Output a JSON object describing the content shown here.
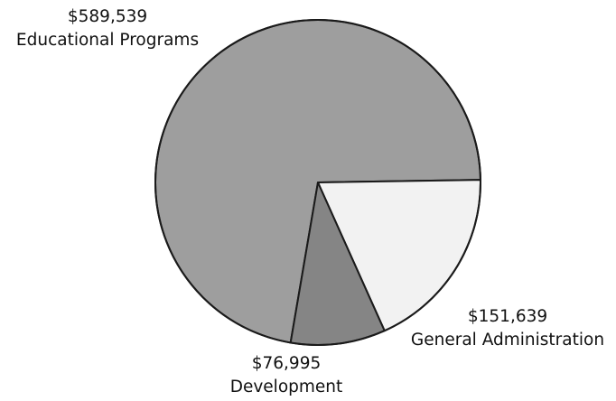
{
  "chart_data": {
    "type": "pie",
    "slices": [
      {
        "label": "Educational Programs",
        "value": 589539,
        "value_label": "$589,539",
        "color": "#9e9e9e"
      },
      {
        "label": "General Administration",
        "value": 151639,
        "value_label": "$151,639",
        "color": "#f2f2f2"
      },
      {
        "label": "Development",
        "value": 76995,
        "value_label": "$76,995",
        "color": "#858585"
      }
    ],
    "stroke_color": "#1a1a1a"
  }
}
